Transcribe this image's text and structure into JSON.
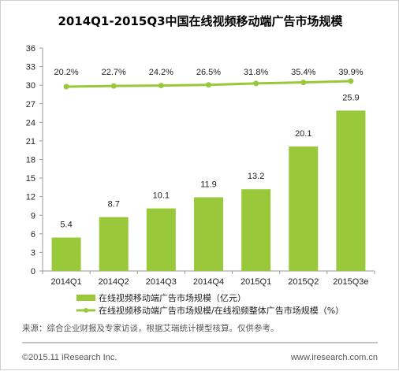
{
  "chart_data": {
    "type": "bar",
    "title": "2014Q1-2015Q3中国在线视频移动端广告市场规模",
    "categories": [
      "2014Q1",
      "2014Q2",
      "2014Q3",
      "2014Q4",
      "2015Q1",
      "2015Q2",
      "2015Q3e"
    ],
    "series": [
      {
        "name": "在线视频移动端广告市场规模（亿元）",
        "type": "bar",
        "values": [
          5.4,
          8.7,
          10.1,
          11.9,
          13.2,
          20.1,
          25.9
        ],
        "labels": [
          "5.4",
          "8.7",
          "10.1",
          "11.9",
          "13.2",
          "20.1",
          "25.9"
        ],
        "color": "#99c93a"
      },
      {
        "name": "在线视频移动端广告市场规模/在线视频整体广告市场规模（%）",
        "type": "line",
        "values": [
          20.2,
          22.7,
          24.2,
          26.5,
          31.8,
          35.4,
          39.9
        ],
        "labels": [
          "20.2%",
          "22.7%",
          "24.2%",
          "26.5%",
          "31.8%",
          "35.4%",
          "39.9%"
        ],
        "color": "#99c93a"
      }
    ],
    "yticks": [
      "0",
      "3",
      "6",
      "9",
      "12",
      "15",
      "18",
      "21",
      "24",
      "27",
      "30",
      "33",
      "36"
    ],
    "ylim": [
      0,
      36
    ],
    "grid": false,
    "legend_position": "bottom-left"
  },
  "source": "来源：综合企业财报及专家访谈，根据艾瑞统计模型核算。仅供参考。",
  "copyright": "©2015.11 iResearch Inc.",
  "website": "www.iresearch.com.cn"
}
